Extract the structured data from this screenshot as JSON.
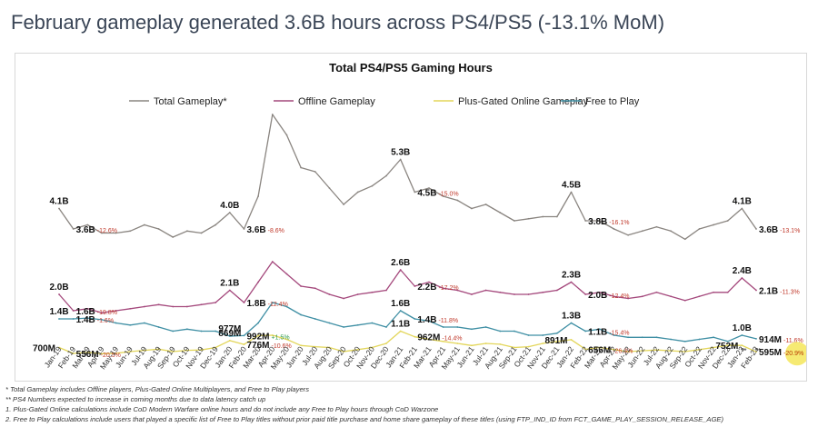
{
  "headline": "February gameplay generated 3.6B hours across PS4/PS5 (-13.1% MoM)",
  "footnotes": [
    "* Total Gameplay includes Offline players, Plus-Gated Online Multiplayers, and Free to Play players",
    "** PS4 Numbers expected to increase in coming months due to data latency catch up",
    "1. Plus-Gated Online calculations include CoD Modern Warfare online hours and do not include any Free to Play hours through CoD Warzone",
    "2. Free to Play calculations include users that played a specific list of Free to Play titles without prior paid title purchase and home share gameplay of these titles (using FTP_IND_ID from  FCT_GAME_PLAY_SESSION_RELEASE_AGE)"
  ],
  "colors": {
    "total": "#8a8580",
    "offline": "#a4487c",
    "plus": "#e3d65a",
    "ftp": "#3f8fa4",
    "negative_pct": "#c0392b",
    "positive_pct": "#2e9a4a",
    "highlight": "#f5e65a"
  },
  "chart_data": {
    "type": "line",
    "title": "Total PS4/PS5 Gaming Hours",
    "legend_position": "top",
    "grid": false,
    "categories": [
      "Jan-19",
      "Feb-19",
      "Mar-19",
      "Apr-19",
      "May-19",
      "Jun-19",
      "Jul-19",
      "Aug-19",
      "Sep-19",
      "Oct-19",
      "Nov-19",
      "Dec-19",
      "Jan-20",
      "Feb-20",
      "Mar-20",
      "Apr-20",
      "May-20",
      "Jun-20",
      "Jul-20",
      "Aug-20",
      "Sep-20",
      "Oct-20",
      "Nov-20",
      "Dec-20",
      "Jan-21",
      "Feb-21",
      "Mar-21",
      "Apr-21",
      "May-21",
      "Jun-21",
      "Jul-21",
      "Aug-21",
      "Sep-21",
      "Oct-21",
      "Nov-21",
      "Dec-21",
      "Jan-22",
      "Feb-22",
      "Mar-22",
      "Apr-22",
      "May-22",
      "Jun-22",
      "Jul-22",
      "Aug-22",
      "Sep-22",
      "Oct-22",
      "Nov-22",
      "Dec-22",
      "Jan-23",
      "Feb-23"
    ],
    "series": [
      {
        "key": "total",
        "name": "Total Gameplay*",
        "values": [
          4.1,
          3.6,
          3.7,
          3.5,
          3.5,
          3.55,
          3.7,
          3.6,
          3.4,
          3.55,
          3.5,
          3.7,
          4.0,
          3.6,
          4.4,
          6.4,
          5.9,
          5.1,
          5.0,
          4.6,
          4.2,
          4.5,
          4.65,
          4.9,
          5.3,
          4.5,
          4.6,
          4.4,
          4.3,
          4.1,
          4.2,
          4.0,
          3.8,
          3.85,
          3.9,
          3.9,
          4.5,
          3.8,
          3.8,
          3.6,
          3.45,
          3.55,
          3.65,
          3.55,
          3.35,
          3.6,
          3.7,
          3.8,
          4.1,
          3.6
        ]
      },
      {
        "key": "offline",
        "name": "Offline Gameplay",
        "values": [
          2.0,
          1.6,
          1.65,
          1.55,
          1.6,
          1.65,
          1.7,
          1.75,
          1.7,
          1.7,
          1.75,
          1.8,
          2.1,
          1.8,
          2.3,
          2.8,
          2.5,
          2.2,
          2.15,
          2.0,
          1.9,
          2.0,
          2.05,
          2.1,
          2.6,
          2.2,
          2.3,
          2.15,
          2.1,
          2.0,
          2.1,
          2.05,
          2.0,
          2.0,
          2.05,
          2.1,
          2.3,
          2.0,
          2.05,
          1.95,
          1.9,
          1.95,
          2.05,
          1.95,
          1.85,
          1.95,
          2.05,
          2.05,
          2.4,
          2.1
        ]
      },
      {
        "key": "plus",
        "name": "Plus-Gated Online Gameplay",
        "values": [
          0.7,
          0.556,
          0.58,
          0.55,
          0.56,
          0.6,
          0.63,
          0.66,
          0.6,
          0.63,
          0.64,
          0.7,
          0.869,
          0.776,
          0.992,
          1.0,
          0.9,
          0.75,
          0.72,
          0.7,
          0.6,
          0.65,
          0.7,
          0.8,
          1.1,
          0.962,
          0.9,
          0.85,
          0.8,
          0.75,
          0.8,
          0.78,
          0.7,
          0.72,
          0.8,
          0.85,
          0.891,
          0.656,
          0.7,
          0.65,
          0.6,
          0.62,
          0.64,
          0.62,
          0.6,
          0.65,
          0.7,
          0.752,
          0.752,
          0.595
        ]
      },
      {
        "key": "ftp",
        "name": "Free to Play",
        "values": [
          1.4,
          1.4,
          1.42,
          1.38,
          1.3,
          1.25,
          1.3,
          1.2,
          1.1,
          1.15,
          1.1,
          1.1,
          0.977,
          0.992,
          1.3,
          1.8,
          1.7,
          1.5,
          1.4,
          1.3,
          1.2,
          1.25,
          1.3,
          1.2,
          1.6,
          1.4,
          1.35,
          1.2,
          1.2,
          1.15,
          1.2,
          1.1,
          1.1,
          1.0,
          1.0,
          1.05,
          1.3,
          1.1,
          1.15,
          1.0,
          0.95,
          0.95,
          0.95,
          0.9,
          0.85,
          0.9,
          0.95,
          0.85,
          1.0,
          0.914
        ]
      }
    ],
    "data_labels": [
      {
        "series": "total",
        "index": 0,
        "text": "4.1B",
        "pct": "",
        "pos": "above"
      },
      {
        "series": "total",
        "index": 1,
        "text": "3.6B",
        "pct": "-12.6%",
        "pos": "right"
      },
      {
        "series": "total",
        "index": 12,
        "text": "4.0B",
        "pct": "",
        "pos": "above"
      },
      {
        "series": "total",
        "index": 13,
        "text": "3.6B",
        "pct": "-8.6%",
        "pos": "right"
      },
      {
        "series": "total",
        "index": 24,
        "text": "5.3B",
        "pct": "",
        "pos": "above"
      },
      {
        "series": "total",
        "index": 25,
        "text": "4.5B",
        "pct": "-15.0%",
        "pos": "right"
      },
      {
        "series": "total",
        "index": 36,
        "text": "4.5B",
        "pct": "",
        "pos": "above"
      },
      {
        "series": "total",
        "index": 37,
        "text": "3.8B",
        "pct": "-16.1%",
        "pos": "right"
      },
      {
        "series": "total",
        "index": 48,
        "text": "4.1B",
        "pct": "",
        "pos": "above"
      },
      {
        "series": "total",
        "index": 49,
        "text": "3.6B",
        "pct": "-13.1%",
        "pos": "right"
      },
      {
        "series": "offline",
        "index": 0,
        "text": "2.0B",
        "pct": "",
        "pos": "above"
      },
      {
        "series": "offline",
        "index": 1,
        "text": "1.6B",
        "pct": "-19.8%",
        "pos": "right"
      },
      {
        "series": "offline",
        "index": 12,
        "text": "2.1B",
        "pct": "",
        "pos": "above"
      },
      {
        "series": "offline",
        "index": 13,
        "text": "1.8B",
        "pct": "-12.4%",
        "pos": "right"
      },
      {
        "series": "offline",
        "index": 24,
        "text": "2.6B",
        "pct": "",
        "pos": "above"
      },
      {
        "series": "offline",
        "index": 25,
        "text": "2.2B",
        "pct": "-17.2%",
        "pos": "right"
      },
      {
        "series": "offline",
        "index": 36,
        "text": "2.3B",
        "pct": "",
        "pos": "above"
      },
      {
        "series": "offline",
        "index": 37,
        "text": "2.0B",
        "pct": "-12.4%",
        "pos": "right"
      },
      {
        "series": "offline",
        "index": 48,
        "text": "2.4B",
        "pct": "",
        "pos": "above"
      },
      {
        "series": "offline",
        "index": 49,
        "text": "2.1B",
        "pct": "-11.3%",
        "pos": "right"
      },
      {
        "series": "ftp",
        "index": 0,
        "text": "1.4B",
        "pct": "",
        "pos": "above"
      },
      {
        "series": "ftp",
        "index": 1,
        "text": "1.4B",
        "pct": "-1.6%",
        "pos": "right"
      },
      {
        "series": "ftp",
        "index": 12,
        "text": "977M",
        "pct": "",
        "pos": "above"
      },
      {
        "series": "ftp",
        "index": 13,
        "text": "992M",
        "pct": "+1.5%",
        "pos": "right"
      },
      {
        "series": "ftp",
        "index": 24,
        "text": "1.6B",
        "pct": "",
        "pos": "above"
      },
      {
        "series": "ftp",
        "index": 25,
        "text": "1.4B",
        "pct": "-11.8%",
        "pos": "right"
      },
      {
        "series": "ftp",
        "index": 36,
        "text": "1.3B",
        "pct": "",
        "pos": "above"
      },
      {
        "series": "ftp",
        "index": 37,
        "text": "1.1B",
        "pct": "-15.4%",
        "pos": "right"
      },
      {
        "series": "ftp",
        "index": 48,
        "text": "1.0B",
        "pct": "",
        "pos": "above"
      },
      {
        "series": "ftp",
        "index": 49,
        "text": "914M",
        "pct": "-11.6%",
        "pos": "right"
      },
      {
        "series": "plus",
        "index": 0,
        "text": "700M",
        "pct": "",
        "pos": "left"
      },
      {
        "series": "plus",
        "index": 1,
        "text": "556M",
        "pct": "-20.5%",
        "pos": "right"
      },
      {
        "series": "plus",
        "index": 12,
        "text": "869M",
        "pct": "",
        "pos": "above"
      },
      {
        "series": "plus",
        "index": 13,
        "text": "776M",
        "pct": "-10.6%",
        "pos": "right"
      },
      {
        "series": "plus",
        "index": 24,
        "text": "1.1B",
        "pct": "",
        "pos": "above"
      },
      {
        "series": "plus",
        "index": 25,
        "text": "962M",
        "pct": "-14.4%",
        "pos": "right"
      },
      {
        "series": "plus",
        "index": 36,
        "text": "891M",
        "pct": "",
        "pos": "left"
      },
      {
        "series": "plus",
        "index": 37,
        "text": "656M",
        "pct": "-26.3%",
        "pos": "right"
      },
      {
        "series": "plus",
        "index": 48,
        "text": "752M",
        "pct": "",
        "pos": "left"
      },
      {
        "series": "plus",
        "index": 49,
        "text": "595M",
        "pct": "-20.9%",
        "pos": "right",
        "highlight": true
      }
    ],
    "tick_marks": [
      {
        "index": 48,
        "text": "**"
      },
      {
        "index": 49,
        "text": "**"
      }
    ]
  }
}
